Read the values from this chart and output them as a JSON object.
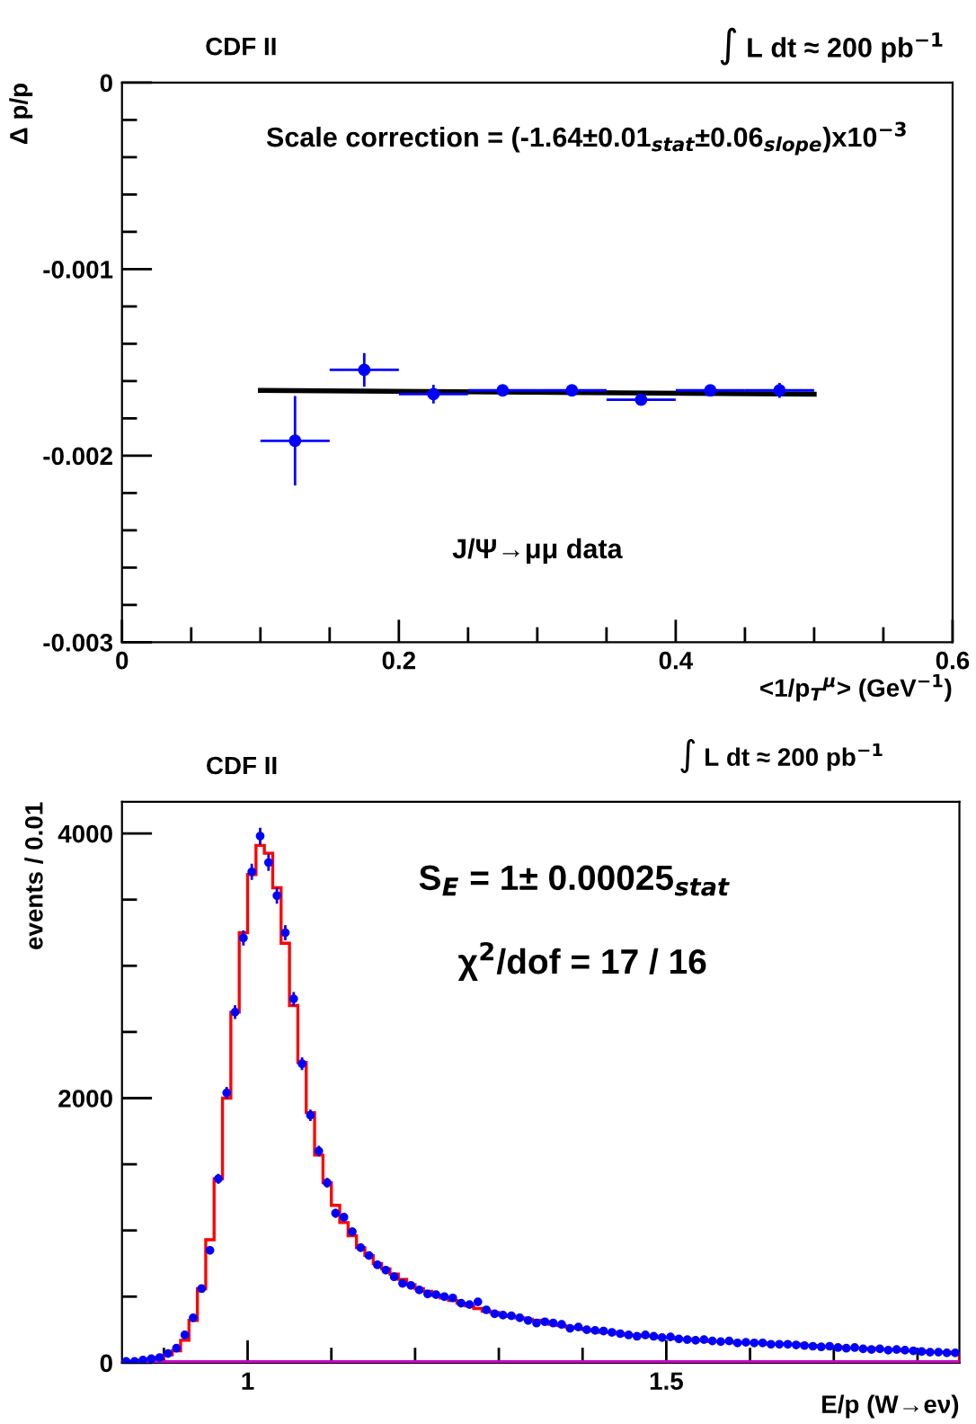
{
  "chart_data": [
    {
      "type": "scatter",
      "title": "CDF II",
      "xlabel": "<1/p$_{T}$$^{μ}$> (GeV$^{−1}$)",
      "ylabel": "Δ p/p",
      "annotations": [
        "∫ L dt ≈ 200 pb$^{−1}$",
        "Scale correction = (-1.64±0.01$_{stat}$±0.06$_{slope}$)x10$^{−3}$",
        "J/Ψ→μμ data"
      ],
      "xlim": [
        0,
        0.6
      ],
      "xticks": [
        {
          "value": 0,
          "label": "0"
        },
        {
          "value": 0.05,
          "label": null
        },
        {
          "value": 0.1,
          "label": null
        },
        {
          "value": 0.15,
          "label": null
        },
        {
          "value": 0.2,
          "label": "0.2"
        },
        {
          "value": 0.25,
          "label": null
        },
        {
          "value": 0.3,
          "label": null
        },
        {
          "value": 0.35,
          "label": null
        },
        {
          "value": 0.4,
          "label": "0.4"
        },
        {
          "value": 0.45,
          "label": null
        },
        {
          "value": 0.5,
          "label": null
        },
        {
          "value": 0.55,
          "label": null
        },
        {
          "value": 0.6,
          "label": "0.6"
        }
      ],
      "ylim": [
        -0.003,
        0
      ],
      "yticks": [
        {
          "value": -0.003,
          "label": "-0.003"
        },
        {
          "value": -0.0028,
          "label": null
        },
        {
          "value": -0.0026,
          "label": null
        },
        {
          "value": -0.0024,
          "label": null
        },
        {
          "value": -0.0022,
          "label": null
        },
        {
          "value": -0.002,
          "label": "-0.002"
        },
        {
          "value": -0.0018,
          "label": null
        },
        {
          "value": -0.0016,
          "label": null
        },
        {
          "value": -0.0014,
          "label": null
        },
        {
          "value": -0.0012,
          "label": null
        },
        {
          "value": -0.001,
          "label": "-0.001"
        },
        {
          "value": -0.0008,
          "label": null
        },
        {
          "value": -0.0006,
          "label": null
        },
        {
          "value": -0.0004,
          "label": null
        },
        {
          "value": -0.0002,
          "label": null
        },
        {
          "value": 0,
          "label": "0"
        }
      ],
      "series": [
        {
          "type": "scatter",
          "marker": "circle",
          "color": "#0000ff",
          "x": [
            0.125,
            0.175,
            0.225,
            0.275,
            0.325,
            0.375,
            0.425,
            0.475
          ],
          "values": [
            -0.00192,
            -0.00154,
            -0.00167,
            -0.00165,
            -0.00165,
            -0.0017,
            -0.00165,
            -0.00165
          ],
          "errors": [
            0.00024,
            9e-05,
            5e-05,
            3e-05,
            3e-05,
            3e-05,
            3e-05,
            4e-05
          ],
          "xerrors": [
            0.025,
            0.025,
            0.025,
            0.025,
            0.025,
            0.025,
            0.025,
            0.025
          ]
        },
        {
          "type": "line",
          "color": "#000000",
          "x": [
            0.1,
            0.5
          ],
          "values": [
            -0.00165,
            -0.00167
          ]
        }
      ]
    },
    {
      "type": "histogram",
      "title": "CDF II",
      "xlabel": "E/p (W→eν)",
      "ylabel": "events / 0.01",
      "annotations": [
        "∫ L dt ≈ 200 pb$^{−1}$",
        "S$_{E}$ = 1± 0.00025$_{stat}$",
        "χ$^{2}$/dof = 17 / 16"
      ],
      "xlim": [
        0.85,
        1.85
      ],
      "xticks": [
        {
          "value": 0.9,
          "label": null
        },
        {
          "value": 1,
          "label": "1"
        },
        {
          "value": 1.1,
          "label": null
        },
        {
          "value": 1.2,
          "label": null
        },
        {
          "value": 1.3,
          "label": null
        },
        {
          "value": 1.4,
          "label": null
        },
        {
          "value": 1.5,
          "label": "1.5"
        },
        {
          "value": 1.6,
          "label": null
        },
        {
          "value": 1.7,
          "label": null
        },
        {
          "value": 1.8,
          "label": null
        }
      ],
      "ylim": [
        0,
        4240
      ],
      "yticks": [
        0,
        {
          "value": 500,
          "label": null
        },
        {
          "value": 1000,
          "label": null
        },
        {
          "value": 1500,
          "label": null
        },
        2000,
        {
          "value": 2500,
          "label": null
        },
        {
          "value": 3000,
          "label": null
        },
        {
          "value": 3500,
          "label": null
        },
        4000
      ],
      "color": "#ff0000",
      "bins": [
        0.85,
        0.86,
        0.87,
        0.88,
        0.89,
        0.9,
        0.91,
        0.92,
        0.93,
        0.94,
        0.95,
        0.96,
        0.97,
        0.98,
        0.99,
        1.0,
        1.01,
        1.02,
        1.03,
        1.04,
        1.05,
        1.06,
        1.07,
        1.08,
        1.09,
        1.1,
        1.11,
        1.12,
        1.13,
        1.14,
        1.15,
        1.16,
        1.17,
        1.18,
        1.19,
        1.2,
        1.21,
        1.22,
        1.23,
        1.24,
        1.25,
        1.26,
        1.27,
        1.28,
        1.29,
        1.3,
        1.31,
        1.32,
        1.33,
        1.34,
        1.35,
        1.36,
        1.37,
        1.38,
        1.39,
        1.4,
        1.41,
        1.42,
        1.43,
        1.44,
        1.45,
        1.46,
        1.47,
        1.48,
        1.49,
        1.5,
        1.51,
        1.52,
        1.53,
        1.54,
        1.55,
        1.56,
        1.57,
        1.58,
        1.59,
        1.6,
        1.61,
        1.62,
        1.63,
        1.64,
        1.65,
        1.66,
        1.67,
        1.68,
        1.69,
        1.7,
        1.71,
        1.72,
        1.73,
        1.74,
        1.75,
        1.76,
        1.77,
        1.78,
        1.79,
        1.8,
        1.81,
        1.82,
        1.83,
        1.84,
        1.85
      ],
      "values": [
        10,
        10,
        20,
        30,
        40,
        60,
        90,
        170,
        320,
        560,
        930,
        1390,
        2000,
        2650,
        3250,
        3690,
        3910,
        3850,
        3590,
        3170,
        2700,
        2270,
        1890,
        1570,
        1360,
        1190,
        1060,
        960,
        870,
        810,
        750,
        710,
        670,
        630,
        590,
        560,
        540,
        510,
        490,
        470,
        450,
        430,
        410,
        390,
        380,
        360,
        350,
        340,
        330,
        320,
        310,
        290,
        280,
        270,
        260,
        250,
        240,
        230,
        230,
        220,
        210,
        210,
        200,
        200,
        190,
        190,
        180,
        180,
        170,
        170,
        160,
        160,
        160,
        150,
        150,
        150,
        150,
        140,
        140,
        140,
        140,
        130,
        130,
        120,
        120,
        120,
        110,
        110,
        110,
        110,
        100,
        100,
        100,
        90,
        90,
        90,
        80,
        80,
        80,
        70
      ],
      "series": [
        {
          "type": "scatter",
          "marker": "circle",
          "color": "#0000ff",
          "x": [
            0.855,
            0.865,
            0.875,
            0.885,
            0.895,
            0.905,
            0.915,
            0.925,
            0.935,
            0.945,
            0.955,
            0.965,
            0.975,
            0.985,
            0.995,
            1.005,
            1.015,
            1.025,
            1.035,
            1.045,
            1.055,
            1.065,
            1.075,
            1.085,
            1.095,
            1.105,
            1.115,
            1.125,
            1.135,
            1.145,
            1.155,
            1.165,
            1.175,
            1.185,
            1.195,
            1.205,
            1.215,
            1.225,
            1.235,
            1.245,
            1.255,
            1.265,
            1.275,
            1.285,
            1.295,
            1.305,
            1.315,
            1.325,
            1.335,
            1.345,
            1.355,
            1.365,
            1.375,
            1.385,
            1.395,
            1.405,
            1.415,
            1.425,
            1.435,
            1.445,
            1.455,
            1.465,
            1.475,
            1.485,
            1.495,
            1.505,
            1.515,
            1.525,
            1.535,
            1.545,
            1.555,
            1.565,
            1.575,
            1.585,
            1.595,
            1.605,
            1.615,
            1.625,
            1.635,
            1.645,
            1.655,
            1.665,
            1.675,
            1.685,
            1.695,
            1.705,
            1.715,
            1.725,
            1.735,
            1.745,
            1.755,
            1.765,
            1.775,
            1.785,
            1.795,
            1.805,
            1.815,
            1.825,
            1.835,
            1.845
          ],
          "values": [
            10,
            10,
            20,
            30,
            40,
            70,
            110,
            210,
            340,
            560,
            850,
            1390,
            2040,
            2650,
            3210,
            3710,
            3980,
            3780,
            3530,
            3250,
            2750,
            2260,
            1870,
            1600,
            1360,
            1130,
            1100,
            990,
            870,
            810,
            740,
            700,
            650,
            600,
            585,
            550,
            520,
            515,
            500,
            490,
            450,
            440,
            460,
            400,
            370,
            360,
            355,
            340,
            320,
            300,
            310,
            300,
            290,
            260,
            270,
            250,
            245,
            240,
            230,
            220,
            210,
            200,
            210,
            200,
            190,
            195,
            180,
            175,
            170,
            175,
            165,
            160,
            165,
            150,
            155,
            150,
            150,
            140,
            140,
            140,
            135,
            130,
            125,
            120,
            125,
            115,
            110,
            115,
            105,
            100,
            105,
            95,
            100,
            95,
            90,
            85,
            80,
            80,
            75,
            75
          ],
          "errors": [
            null,
            null,
            null,
            null,
            null,
            null,
            null,
            15,
            19,
            24,
            29,
            37,
            45,
            52,
            57,
            61,
            63,
            62,
            60,
            57,
            52,
            48,
            43,
            40,
            37,
            34,
            33,
            31,
            30,
            29,
            27,
            27,
            26,
            25,
            24,
            24,
            23,
            23,
            22,
            22,
            21,
            21,
            22,
            20,
            19,
            19,
            19,
            18,
            18,
            17,
            18,
            17,
            17,
            16,
            16,
            16,
            16,
            15,
            15,
            15,
            15,
            14,
            15,
            14,
            14,
            14,
            13,
            13,
            13,
            13,
            13,
            13,
            13,
            12,
            12,
            12,
            12,
            12,
            12,
            12,
            12,
            11,
            11,
            11,
            11,
            11,
            10,
            11,
            10,
            10,
            10,
            10,
            10,
            10,
            9,
            9,
            9,
            9,
            9,
            9
          ]
        },
        {
          "type": "line",
          "color": "#cc00cc",
          "x": [
            0.85,
            1.85
          ],
          "values": [
            0,
            0
          ]
        }
      ]
    }
  ]
}
